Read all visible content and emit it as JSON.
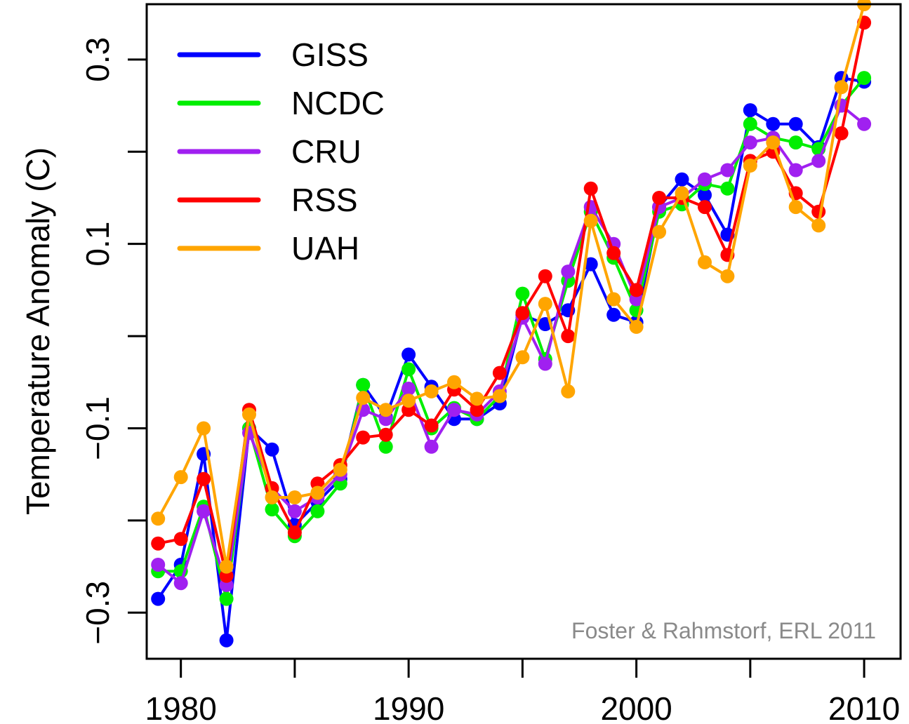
{
  "chart_data": {
    "type": "line",
    "title": "",
    "xlabel": "",
    "ylabel": "Temperature Anomaly (C)",
    "xlim": [
      1978.5,
      2011.6
    ],
    "ylim": [
      -0.35,
      0.36
    ],
    "x_ticks": [
      1980,
      1985,
      1990,
      1995,
      2000,
      2005,
      2010
    ],
    "x_tick_labels": [
      "1980",
      "",
      "1990",
      "",
      "2000",
      "",
      "2010"
    ],
    "y_ticks": [
      -0.3,
      -0.2,
      -0.1,
      0,
      0.1,
      0.2,
      0.3
    ],
    "y_tick_labels": [
      "−0.3",
      "",
      "−0.1",
      "",
      "0.1",
      "",
      "0.3"
    ],
    "grid": false,
    "legend": "top-left",
    "annotation": "Foster & Rahmstorf, ERL 2011",
    "x": [
      1979,
      1980,
      1981,
      1982,
      1983,
      1984,
      1985,
      1986,
      1987,
      1988,
      1989,
      1990,
      1991,
      1992,
      1993,
      1994,
      1995,
      1996,
      1997,
      1998,
      1999,
      2000,
      2001,
      2002,
      2003,
      2004,
      2005,
      2006,
      2007,
      2008,
      2009,
      2010
    ],
    "series": [
      {
        "name": "GISS",
        "color": "#0000ff",
        "values": [
          -0.285,
          -0.248,
          -0.128,
          -0.33,
          -0.1,
          -0.123,
          -0.205,
          -0.18,
          -0.155,
          -0.053,
          -0.088,
          -0.02,
          -0.055,
          -0.09,
          -0.09,
          -0.073,
          0.023,
          0.013,
          0.028,
          0.078,
          0.023,
          0.015,
          0.14,
          0.17,
          0.153,
          0.11,
          0.245,
          0.23,
          0.23,
          0.205,
          0.28,
          0.276
        ]
      },
      {
        "name": "NCDC",
        "color": "#00ee00",
        "values": [
          -0.255,
          -0.255,
          -0.185,
          -0.285,
          -0.1,
          -0.188,
          -0.217,
          -0.19,
          -0.16,
          -0.053,
          -0.12,
          -0.036,
          -0.1,
          -0.078,
          -0.09,
          -0.065,
          0.046,
          -0.025,
          0.06,
          0.135,
          0.085,
          0.028,
          0.135,
          0.143,
          0.165,
          0.16,
          0.23,
          0.215,
          0.21,
          0.203,
          0.25,
          0.28
        ]
      },
      {
        "name": "CRU",
        "color": "#a020f0",
        "values": [
          -0.248,
          -0.268,
          -0.19,
          -0.27,
          -0.105,
          -0.165,
          -0.19,
          -0.175,
          -0.15,
          -0.08,
          -0.09,
          -0.057,
          -0.12,
          -0.08,
          -0.085,
          -0.06,
          0.02,
          -0.03,
          0.07,
          0.14,
          0.1,
          0.04,
          0.14,
          0.15,
          0.17,
          0.18,
          0.21,
          0.215,
          0.18,
          0.19,
          0.25,
          0.23
        ]
      },
      {
        "name": "RSS",
        "color": "#ff0000",
        "values": [
          -0.225,
          -0.22,
          -0.155,
          -0.26,
          -0.08,
          -0.165,
          -0.213,
          -0.16,
          -0.14,
          -0.11,
          -0.107,
          -0.08,
          -0.097,
          -0.058,
          -0.08,
          -0.04,
          0.025,
          0.065,
          0.0,
          0.16,
          0.09,
          0.05,
          0.15,
          0.15,
          0.14,
          0.088,
          0.19,
          0.2,
          0.155,
          0.135,
          0.22,
          0.34
        ]
      },
      {
        "name": "UAH",
        "color": "#ffa500",
        "values": [
          -0.198,
          -0.153,
          -0.1,
          -0.25,
          -0.085,
          -0.175,
          -0.175,
          -0.17,
          -0.145,
          -0.067,
          -0.08,
          -0.07,
          -0.06,
          -0.05,
          -0.068,
          -0.065,
          -0.023,
          0.035,
          -0.06,
          0.125,
          0.04,
          0.01,
          0.113,
          0.155,
          0.08,
          0.065,
          0.185,
          0.21,
          0.14,
          0.12,
          0.27,
          0.36
        ]
      }
    ]
  }
}
